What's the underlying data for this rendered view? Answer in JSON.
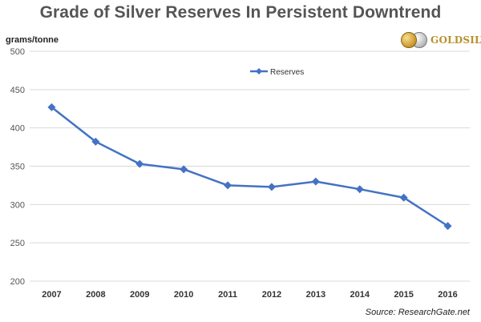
{
  "title": "Grade of Silver Reserves In Persistent Downtrend",
  "logo": {
    "text": "GOLDSILVER",
    "icon": "coins-icon"
  },
  "source": "Source: ResearchGate.net",
  "colors": {
    "series": "#4472c4",
    "grid": "#d9d9d9",
    "title": "#555555",
    "logo": "#b8902c"
  },
  "chart_data": {
    "type": "line",
    "title": "Grade of Silver Reserves In Persistent Downtrend",
    "ylabel": "grams/tonne",
    "xlabel": "",
    "categories": [
      "2007",
      "2008",
      "2009",
      "2010",
      "2011",
      "2012",
      "2013",
      "2014",
      "2015",
      "2016"
    ],
    "series": [
      {
        "name": "Reserves",
        "values": [
          427,
          382,
          353,
          346,
          325,
          323,
          330,
          320,
          309,
          272
        ]
      }
    ],
    "ylim": [
      200,
      500
    ],
    "yticks": [
      200,
      250,
      300,
      350,
      400,
      450,
      500
    ],
    "grid": true,
    "legend": "top-center",
    "marker": "diamond"
  }
}
